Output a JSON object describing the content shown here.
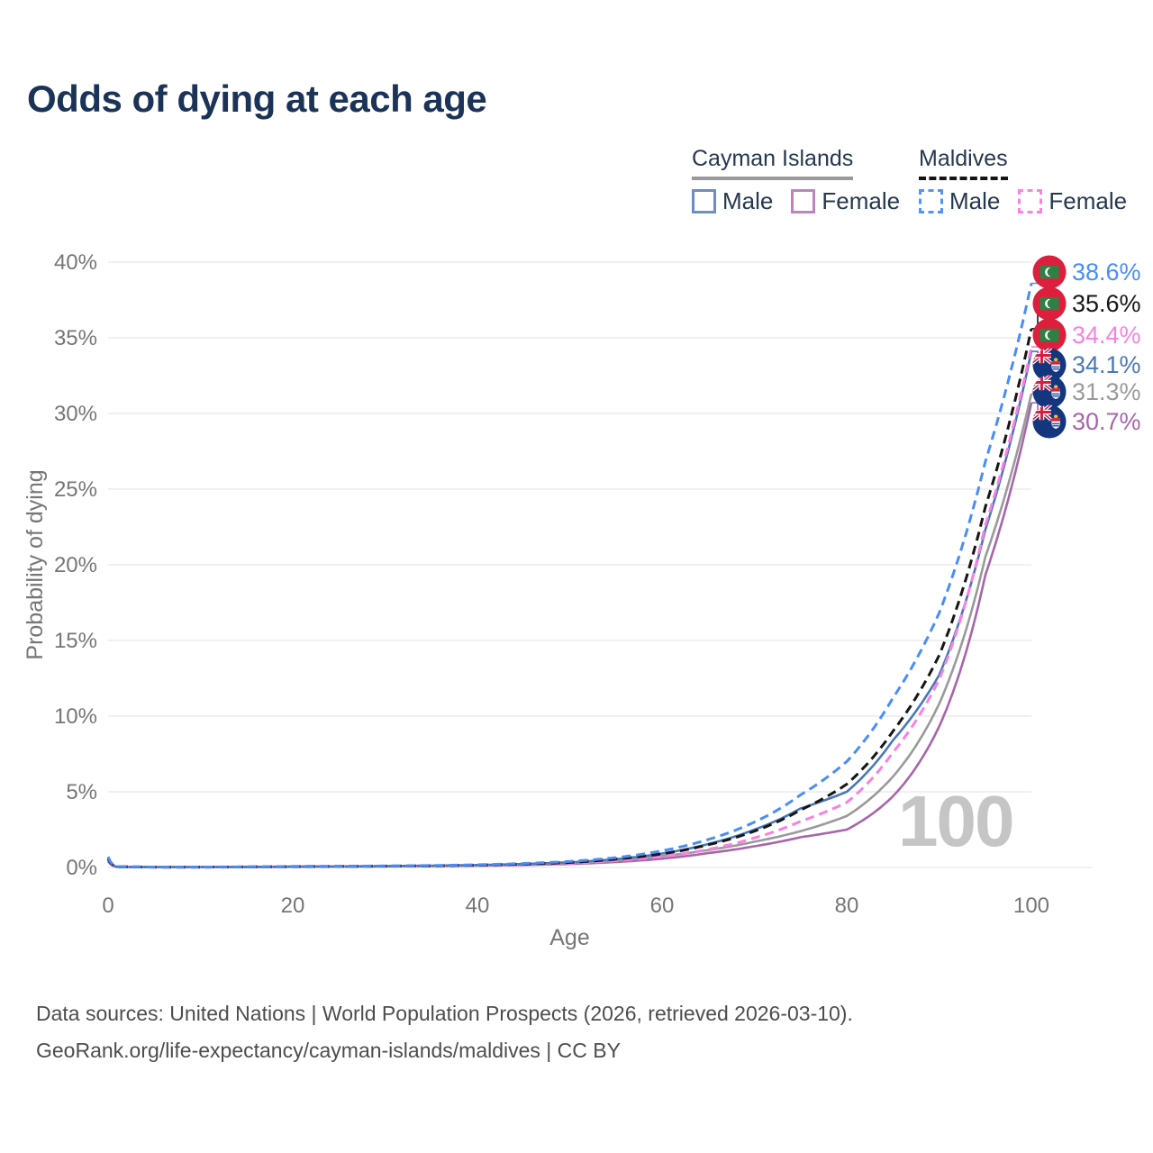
{
  "title": "Odds of dying at each age",
  "legend": {
    "groups": [
      {
        "name": "Cayman Islands",
        "line_style": "solid",
        "underline_color": "#9a9a9a",
        "items": [
          {
            "label": "Male",
            "color": "#6a8fc5",
            "dashed": false
          },
          {
            "label": "Female",
            "color": "#bd84bd",
            "dashed": false
          }
        ]
      },
      {
        "name": "Maldives",
        "line_style": "dashed",
        "underline_color": "#141414",
        "items": [
          {
            "label": "Male",
            "color": "#4d94ff",
            "dashed": true
          },
          {
            "label": "Female",
            "color": "#ff80e5",
            "dashed": true
          }
        ]
      }
    ]
  },
  "chart_data": {
    "type": "line",
    "title": "Odds of dying at each age",
    "xlabel": "Age",
    "ylabel": "Probability of dying",
    "xlim": [
      0,
      100
    ],
    "ylim": [
      0,
      40
    ],
    "x_ticks": [
      0,
      20,
      40,
      60,
      80,
      100
    ],
    "y_ticks": [
      0,
      5,
      10,
      15,
      20,
      25,
      30,
      35,
      40
    ],
    "y_suffix": "%",
    "grid": "horizontal",
    "watermark": "100",
    "series": [
      {
        "name": "Maldives — Male",
        "country": "Maldives",
        "group_label": "Male",
        "color": "#4a8df8",
        "dashed": true,
        "flag": "maldives",
        "end_label": "38.6%",
        "end_value": 38.6,
        "points": [
          [
            0,
            0.7
          ],
          [
            1,
            0.06
          ],
          [
            5,
            0.03
          ],
          [
            10,
            0.03
          ],
          [
            15,
            0.04
          ],
          [
            20,
            0.07
          ],
          [
            25,
            0.08
          ],
          [
            30,
            0.1
          ],
          [
            35,
            0.13
          ],
          [
            40,
            0.18
          ],
          [
            45,
            0.26
          ],
          [
            50,
            0.4
          ],
          [
            55,
            0.65
          ],
          [
            60,
            1.1
          ],
          [
            65,
            1.85
          ],
          [
            70,
            3.0
          ],
          [
            75,
            4.8
          ],
          [
            80,
            7.0
          ],
          [
            85,
            11.2
          ],
          [
            90,
            16.8
          ],
          [
            95,
            26.8
          ],
          [
            100,
            38.6
          ]
        ]
      },
      {
        "name": "Maldives",
        "country": "Maldives",
        "group_label": "",
        "color": "#161616",
        "dashed": true,
        "flag": "maldives",
        "end_label": "35.6%",
        "end_value": 35.6,
        "points": [
          [
            0,
            0.6
          ],
          [
            1,
            0.05
          ],
          [
            5,
            0.025
          ],
          [
            10,
            0.025
          ],
          [
            15,
            0.035
          ],
          [
            20,
            0.06
          ],
          [
            25,
            0.07
          ],
          [
            30,
            0.09
          ],
          [
            35,
            0.11
          ],
          [
            40,
            0.15
          ],
          [
            45,
            0.22
          ],
          [
            50,
            0.33
          ],
          [
            55,
            0.55
          ],
          [
            60,
            0.9
          ],
          [
            65,
            1.5
          ],
          [
            70,
            2.4
          ],
          [
            75,
            3.8
          ],
          [
            80,
            5.5
          ],
          [
            85,
            9.0
          ],
          [
            90,
            14.0
          ],
          [
            95,
            23.8
          ],
          [
            100,
            35.6
          ]
        ]
      },
      {
        "name": "Maldives — Female",
        "country": "Maldives",
        "group_label": "Female",
        "color": "#f981e2",
        "dashed": true,
        "flag": "maldives",
        "end_label": "34.4%",
        "end_value": 34.4,
        "points": [
          [
            0,
            0.55
          ],
          [
            1,
            0.05
          ],
          [
            5,
            0.02
          ],
          [
            10,
            0.02
          ],
          [
            15,
            0.03
          ],
          [
            20,
            0.05
          ],
          [
            25,
            0.06
          ],
          [
            30,
            0.08
          ],
          [
            35,
            0.1
          ],
          [
            40,
            0.13
          ],
          [
            45,
            0.18
          ],
          [
            50,
            0.27
          ],
          [
            55,
            0.45
          ],
          [
            60,
            0.72
          ],
          [
            65,
            1.2
          ],
          [
            70,
            1.95
          ],
          [
            75,
            3.05
          ],
          [
            80,
            4.3
          ],
          [
            85,
            7.6
          ],
          [
            90,
            12.4
          ],
          [
            95,
            22.6
          ],
          [
            100,
            34.4
          ]
        ]
      },
      {
        "name": "Cayman Islands — Male",
        "country": "Cayman Islands",
        "group_label": "Male",
        "color": "#4878ba",
        "dashed": false,
        "flag": "cayman",
        "end_label": "34.1%",
        "end_value": 34.1,
        "points": [
          [
            0,
            0.5
          ],
          [
            1,
            0.04
          ],
          [
            5,
            0.02
          ],
          [
            10,
            0.025
          ],
          [
            15,
            0.035
          ],
          [
            20,
            0.06
          ],
          [
            25,
            0.07
          ],
          [
            30,
            0.09
          ],
          [
            35,
            0.12
          ],
          [
            40,
            0.16
          ],
          [
            45,
            0.23
          ],
          [
            50,
            0.34
          ],
          [
            55,
            0.55
          ],
          [
            60,
            0.92
          ],
          [
            65,
            1.55
          ],
          [
            70,
            2.5
          ],
          [
            75,
            3.9
          ],
          [
            80,
            5.0
          ],
          [
            85,
            8.4
          ],
          [
            90,
            12.7
          ],
          [
            95,
            22.3
          ],
          [
            100,
            34.1
          ]
        ]
      },
      {
        "name": "Cayman Islands",
        "country": "Cayman Islands",
        "group_label": "",
        "color": "#9a9a9a",
        "dashed": false,
        "flag": "cayman",
        "end_label": "31.3%",
        "end_value": 31.3,
        "points": [
          [
            0,
            0.45
          ],
          [
            1,
            0.04
          ],
          [
            5,
            0.02
          ],
          [
            10,
            0.02
          ],
          [
            15,
            0.03
          ],
          [
            20,
            0.05
          ],
          [
            25,
            0.06
          ],
          [
            30,
            0.08
          ],
          [
            35,
            0.1
          ],
          [
            40,
            0.14
          ],
          [
            45,
            0.2
          ],
          [
            50,
            0.28
          ],
          [
            55,
            0.45
          ],
          [
            60,
            0.75
          ],
          [
            65,
            1.15
          ],
          [
            70,
            1.7
          ],
          [
            75,
            2.4
          ],
          [
            80,
            3.4
          ],
          [
            85,
            6.0
          ],
          [
            90,
            10.8
          ],
          [
            95,
            20.5
          ],
          [
            100,
            31.3
          ]
        ]
      },
      {
        "name": "Cayman Islands — Female",
        "country": "Cayman Islands",
        "group_label": "Female",
        "color": "#a765ab",
        "dashed": false,
        "flag": "cayman",
        "end_label": "30.7%",
        "end_value": 30.7,
        "points": [
          [
            0,
            0.4
          ],
          [
            1,
            0.035
          ],
          [
            5,
            0.015
          ],
          [
            10,
            0.02
          ],
          [
            15,
            0.025
          ],
          [
            20,
            0.04
          ],
          [
            25,
            0.05
          ],
          [
            30,
            0.07
          ],
          [
            35,
            0.09
          ],
          [
            40,
            0.12
          ],
          [
            45,
            0.16
          ],
          [
            50,
            0.23
          ],
          [
            55,
            0.36
          ],
          [
            60,
            0.58
          ],
          [
            65,
            0.95
          ],
          [
            70,
            1.4
          ],
          [
            75,
            2.0
          ],
          [
            80,
            2.5
          ],
          [
            85,
            4.7
          ],
          [
            90,
            9.3
          ],
          [
            95,
            19.3
          ],
          [
            100,
            30.7
          ]
        ]
      }
    ]
  },
  "footer": {
    "line1": "Data sources: United Nations | World Population Prospects (2026, retrieved 2026-03-10).",
    "line2": "GeoRank.org/life-expectancy/cayman-islands/maldives | CC BY"
  }
}
